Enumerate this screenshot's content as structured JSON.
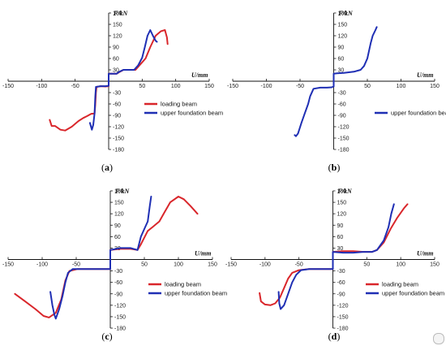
{
  "colors": {
    "loading beam": "#d9262b",
    "upper foundation beam": "#1f2fb4"
  },
  "axis": {
    "x_label": "U/mm",
    "y_label": "F/kN"
  },
  "chart_data": [
    {
      "type": "line",
      "panel_label": "a",
      "xlabel": "U/mm",
      "ylabel": "F/kN",
      "xlim": [
        -150,
        150
      ],
      "ylim": [
        -180,
        180
      ],
      "x_ticks": [
        -150,
        -100,
        -50,
        50,
        100,
        150
      ],
      "y_ticks": [
        180,
        150,
        120,
        90,
        60,
        30,
        -30,
        -60,
        -90,
        -120,
        -150,
        -180
      ],
      "legend": [
        "loading beam",
        "upper foundation beam"
      ],
      "series": [
        {
          "name": "loading beam",
          "points": [
            [
              -88,
              -102
            ],
            [
              -85,
              -118
            ],
            [
              -80,
              -118
            ],
            [
              -72,
              -128
            ],
            [
              -65,
              -130
            ],
            [
              -55,
              -120
            ],
            [
              -45,
              -105
            ],
            [
              -38,
              -97
            ],
            [
              -32,
              -92
            ],
            [
              -26,
              -86
            ],
            [
              -21,
              -85
            ],
            [
              -20,
              -62
            ],
            [
              -19,
              -30
            ],
            [
              -18,
              -15
            ],
            [
              -12,
              -13
            ],
            [
              -5,
              -14
            ],
            [
              0,
              -13
            ],
            [
              0,
              20
            ],
            [
              5,
              20
            ],
            [
              12,
              20
            ],
            [
              16,
              24
            ],
            [
              22,
              30
            ],
            [
              32,
              30
            ],
            [
              40,
              30
            ],
            [
              45,
              40
            ],
            [
              55,
              60
            ],
            [
              62,
              90
            ],
            [
              70,
              120
            ],
            [
              78,
              132
            ],
            [
              84,
              135
            ],
            [
              87,
              115
            ],
            [
              88,
              98
            ]
          ]
        },
        {
          "name": "upper foundation beam",
          "points": [
            [
              -28,
              -110
            ],
            [
              -25,
              -128
            ],
            [
              -23,
              -115
            ],
            [
              -22,
              -100
            ],
            [
              -21,
              -85
            ],
            [
              -20,
              -40
            ],
            [
              -19,
              -15
            ],
            [
              -12,
              -13
            ],
            [
              -5,
              -13
            ],
            [
              0,
              -12
            ],
            [
              0,
              20
            ],
            [
              5,
              20
            ],
            [
              12,
              20
            ],
            [
              16,
              25
            ],
            [
              22,
              30
            ],
            [
              30,
              30
            ],
            [
              38,
              30
            ],
            [
              44,
              42
            ],
            [
              50,
              62
            ],
            [
              54,
              90
            ],
            [
              58,
              120
            ],
            [
              62,
              135
            ],
            [
              66,
              120
            ],
            [
              70,
              107
            ],
            [
              72,
              104
            ]
          ]
        }
      ]
    },
    {
      "type": "line",
      "panel_label": "b",
      "xlabel": "U/mm",
      "ylabel": "F/kN",
      "xlim": [
        -150,
        150
      ],
      "ylim": [
        -180,
        180
      ],
      "x_ticks": [
        -150,
        -100,
        -50,
        50,
        100,
        150
      ],
      "y_ticks": [
        180,
        150,
        120,
        90,
        60,
        30,
        -30,
        -60,
        -90,
        -120,
        -150,
        -180
      ],
      "legend": [
        "upper foundation beam"
      ],
      "series": [
        {
          "name": "upper foundation beam",
          "points": [
            [
              -58,
              -142
            ],
            [
              -56,
              -145
            ],
            [
              -53,
              -138
            ],
            [
              -48,
              -110
            ],
            [
              -43,
              -85
            ],
            [
              -38,
              -60
            ],
            [
              -35,
              -40
            ],
            [
              -30,
              -20
            ],
            [
              -20,
              -17
            ],
            [
              -10,
              -17
            ],
            [
              -3,
              -16
            ],
            [
              0,
              -14
            ],
            [
              0,
              20
            ],
            [
              5,
              21
            ],
            [
              15,
              22
            ],
            [
              30,
              25
            ],
            [
              40,
              30
            ],
            [
              45,
              40
            ],
            [
              50,
              60
            ],
            [
              55,
              100
            ],
            [
              58,
              120
            ],
            [
              62,
              135
            ],
            [
              64,
              143
            ]
          ]
        }
      ]
    },
    {
      "type": "line",
      "panel_label": "c",
      "xlabel": "U/mm",
      "ylabel": "F/kN",
      "xlim": [
        -150,
        150
      ],
      "ylim": [
        -180,
        180
      ],
      "x_ticks": [
        -150,
        -100,
        -50,
        50,
        100,
        150
      ],
      "y_ticks": [
        180,
        150,
        120,
        90,
        60,
        30,
        -30,
        -60,
        -90,
        -120,
        -150,
        -180
      ],
      "legend": [
        "loading beam",
        "upper foundation beam"
      ],
      "series": [
        {
          "name": "loading beam",
          "points": [
            [
              -140,
              -90
            ],
            [
              -125,
              -110
            ],
            [
              -110,
              -130
            ],
            [
              -98,
              -148
            ],
            [
              -90,
              -152
            ],
            [
              -80,
              -140
            ],
            [
              -72,
              -105
            ],
            [
              -66,
              -55
            ],
            [
              -60,
              -30
            ],
            [
              -48,
              -25
            ],
            [
              -30,
              -25
            ],
            [
              -15,
              -25
            ],
            [
              0,
              -25
            ],
            [
              0,
              25
            ],
            [
              15,
              28
            ],
            [
              30,
              28
            ],
            [
              40,
              25
            ],
            [
              45,
              40
            ],
            [
              55,
              75
            ],
            [
              62,
              85
            ],
            [
              72,
              100
            ],
            [
              80,
              125
            ],
            [
              88,
              150
            ],
            [
              100,
              165
            ],
            [
              108,
              158
            ],
            [
              118,
              140
            ],
            [
              128,
              120
            ]
          ]
        },
        {
          "name": "upper foundation beam",
          "points": [
            [
              -88,
              -85
            ],
            [
              -85,
              -120
            ],
            [
              -82,
              -145
            ],
            [
              -80,
              -155
            ],
            [
              -75,
              -130
            ],
            [
              -70,
              -95
            ],
            [
              -66,
              -60
            ],
            [
              -62,
              -35
            ],
            [
              -55,
              -25
            ],
            [
              -40,
              -25
            ],
            [
              -20,
              -25
            ],
            [
              0,
              -25
            ],
            [
              0,
              25
            ],
            [
              15,
              30
            ],
            [
              30,
              30
            ],
            [
              40,
              25
            ],
            [
              45,
              60
            ],
            [
              50,
              80
            ],
            [
              55,
              100
            ],
            [
              58,
              140
            ],
            [
              60,
              165
            ]
          ]
        }
      ]
    },
    {
      "type": "line",
      "panel_label": "d",
      "xlabel": "U/mm",
      "ylabel": "F/kN",
      "xlim": [
        -150,
        150
      ],
      "ylim": [
        -180,
        180
      ],
      "x_ticks": [
        -150,
        -100,
        -50,
        50,
        100,
        150
      ],
      "y_ticks": [
        180,
        150,
        120,
        90,
        60,
        30,
        -30,
        -60,
        -90,
        -120,
        -150,
        -180
      ],
      "legend": [
        "loading beam",
        "upper foundation beam"
      ],
      "series": [
        {
          "name": "loading beam",
          "points": [
            [
              -108,
              -88
            ],
            [
              -106,
              -110
            ],
            [
              -100,
              -118
            ],
            [
              -92,
              -120
            ],
            [
              -85,
              -115
            ],
            [
              -78,
              -100
            ],
            [
              -72,
              -75
            ],
            [
              -66,
              -50
            ],
            [
              -60,
              -35
            ],
            [
              -50,
              -28
            ],
            [
              -35,
              -25
            ],
            [
              -15,
              -25
            ],
            [
              0,
              -25
            ],
            [
              0,
              20
            ],
            [
              15,
              22
            ],
            [
              30,
              22
            ],
            [
              45,
              20
            ],
            [
              58,
              20
            ],
            [
              65,
              25
            ],
            [
              75,
              45
            ],
            [
              85,
              80
            ],
            [
              95,
              110
            ],
            [
              105,
              135
            ],
            [
              110,
              145
            ]
          ]
        },
        {
          "name": "upper foundation beam",
          "points": [
            [
              -80,
              -85
            ],
            [
              -79,
              -115
            ],
            [
              -77,
              -130
            ],
            [
              -72,
              -120
            ],
            [
              -66,
              -90
            ],
            [
              -60,
              -60
            ],
            [
              -54,
              -40
            ],
            [
              -47,
              -28
            ],
            [
              -35,
              -25
            ],
            [
              -15,
              -25
            ],
            [
              0,
              -25
            ],
            [
              0,
              20
            ],
            [
              15,
              18
            ],
            [
              30,
              18
            ],
            [
              45,
              20
            ],
            [
              58,
              20
            ],
            [
              65,
              25
            ],
            [
              75,
              50
            ],
            [
              82,
              85
            ],
            [
              86,
              120
            ],
            [
              90,
              145
            ]
          ]
        }
      ]
    }
  ]
}
